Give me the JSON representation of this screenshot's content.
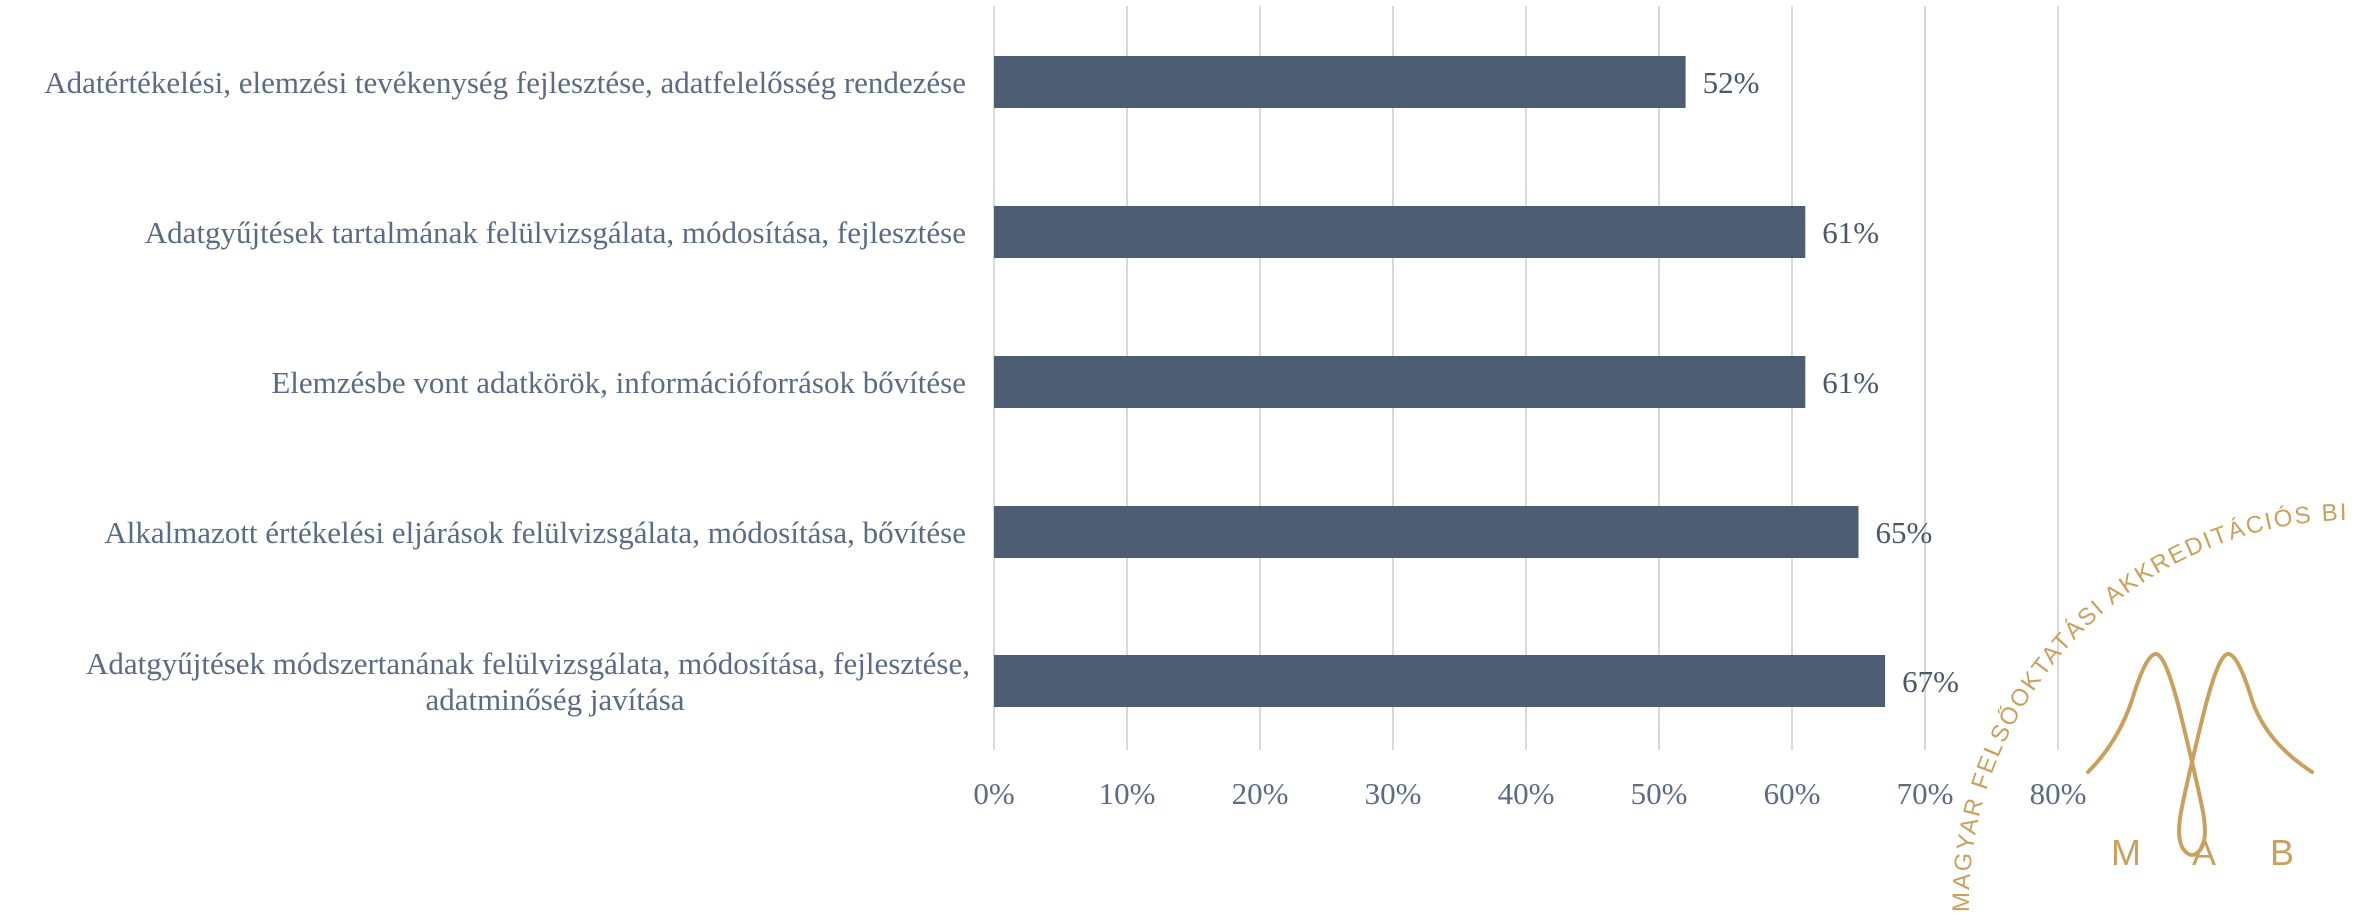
{
  "chart_data": {
    "type": "bar",
    "orientation": "horizontal",
    "categories": [
      [
        "Adatértékelési, elemzési tevékenység fejlesztése, adatfelelősség rendezése"
      ],
      [
        "Adatgyűjtések tartalmának felülvizsgálata, módosítása, fejlesztése"
      ],
      [
        "Elemzésbe vont adatkörök, információforrások bővítése"
      ],
      [
        "Alkalmazott értékelési eljárások felülvizsgálata, módosítása, bővítése"
      ],
      [
        "Adatgyűjtések módszertanának felülvizsgálata, módosítása, fejlesztése,",
        "adatminőség javítása"
      ]
    ],
    "values": [
      52,
      61,
      61,
      65,
      67
    ],
    "data_labels": [
      "52%",
      "61%",
      "61%",
      "65%",
      "67%"
    ],
    "xlim": [
      0,
      80
    ],
    "x_ticks": [
      0,
      10,
      20,
      30,
      40,
      50,
      60,
      70,
      80
    ],
    "x_tick_labels": [
      "0%",
      "10%",
      "20%",
      "30%",
      "40%",
      "50%",
      "60%",
      "70%",
      "80%"
    ],
    "grid": "vertical",
    "bar_color": "#4d5d74"
  },
  "logo": {
    "arc_text": "MAGYAR FELSŐOKTATÁSI AKKREDITÁCIÓS BIZOTTSÁG",
    "letters": [
      "M",
      "A",
      "B"
    ],
    "color": "#c9a15c"
  }
}
